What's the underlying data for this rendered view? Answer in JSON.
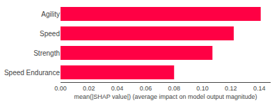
{
  "chart_data": {
    "type": "bar",
    "orientation": "horizontal",
    "categories": [
      "Speed Endurance",
      "Strength",
      "Speed",
      "Agility"
    ],
    "values": [
      0.08,
      0.107,
      0.122,
      0.141
    ],
    "color": "#FF0044",
    "xlabel": "mean(|SHAP value|) (average impact on model output magnitude)",
    "xlim": [
      0,
      0.148
    ],
    "xticks": [
      {
        "value": 0,
        "label": "0.00"
      },
      {
        "value": 0.02,
        "label": "0.02"
      },
      {
        "value": 0.04,
        "label": "0.04"
      },
      {
        "value": 0.06,
        "label": "0.06"
      },
      {
        "value": 0.08,
        "label": "0.08"
      },
      {
        "value": 0.1,
        "label": "0.10"
      },
      {
        "value": 0.12,
        "label": "0.12"
      },
      {
        "value": 0.14,
        "label": "0.14"
      }
    ],
    "grid": false
  }
}
